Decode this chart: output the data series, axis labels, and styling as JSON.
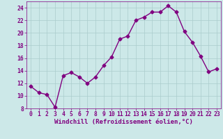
{
  "x": [
    0,
    1,
    2,
    3,
    4,
    5,
    6,
    7,
    8,
    9,
    10,
    11,
    12,
    13,
    14,
    15,
    16,
    17,
    18,
    19,
    20,
    21,
    22,
    23
  ],
  "y": [
    11.5,
    10.5,
    10.2,
    8.2,
    13.2,
    13.7,
    13.0,
    12.0,
    13.0,
    14.8,
    16.2,
    19.0,
    19.5,
    22.0,
    22.5,
    23.3,
    23.3,
    24.3,
    23.3,
    20.2,
    18.5,
    16.3,
    13.8,
    14.3
  ],
  "line_color": "#800080",
  "marker": "D",
  "markersize": 2.5,
  "linewidth": 1.0,
  "bg_color": "#cce8e8",
  "grid_color": "#aacccc",
  "xlabel": "Windchill (Refroidissement éolien,°C)",
  "xlabel_fontsize": 6.5,
  "tick_fontsize": 5.8,
  "ylim": [
    8,
    25
  ],
  "yticks": [
    8,
    10,
    12,
    14,
    16,
    18,
    20,
    22,
    24
  ],
  "xlim": [
    -0.5,
    23.5
  ]
}
